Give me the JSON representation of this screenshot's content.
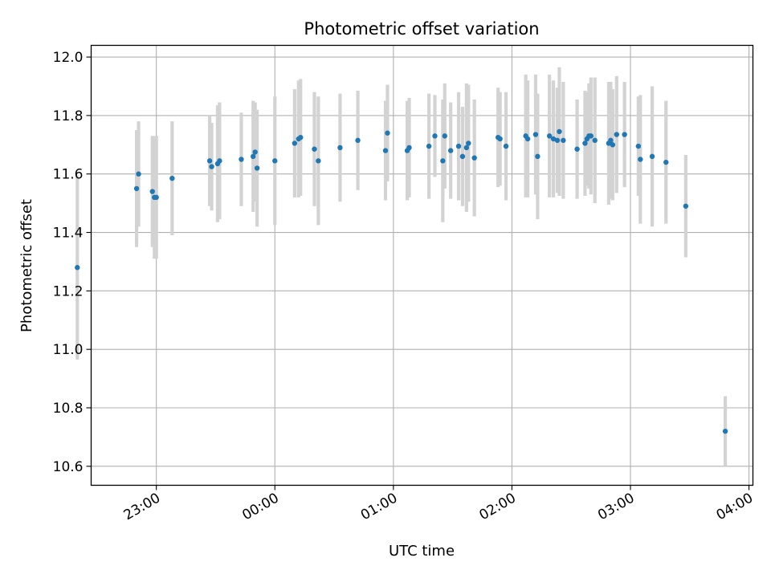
{
  "chart_data": {
    "type": "scatter",
    "title": "Photometric offset variation",
    "xlabel": "UTC time",
    "ylabel": "Photometric offset",
    "xlim": [
      "22:27",
      "04:02"
    ],
    "ylim": [
      10.535,
      12.04
    ],
    "x_ticks": [
      "23:00",
      "00:00",
      "01:00",
      "02:00",
      "03:00",
      "04:00"
    ],
    "y_ticks": [
      "10.6",
      "10.8",
      "11.0",
      "11.2",
      "11.4",
      "11.6",
      "11.8",
      "12.0"
    ],
    "grid": true,
    "colors": {
      "point": "#1f77b4",
      "errorbar": "#d3d3d3",
      "grid": "#b0b0b0"
    },
    "series": [
      {
        "x": [
          "22:20",
          "22:50",
          "22:51",
          "22:58",
          "22:59",
          "23:00",
          "23:08",
          "23:27",
          "23:28",
          "23:31",
          "23:32",
          "23:43",
          "23:49",
          "23:50",
          "23:51",
          "24:00",
          "24:10",
          "24:12",
          "24:13",
          "24:20",
          "24:22",
          "24:33",
          "24:42",
          "24:56",
          "24:57",
          "25:07",
          "25:08",
          "25:18",
          "25:21",
          "25:25",
          "25:26",
          "25:29",
          "25:33",
          "25:35",
          "25:37",
          "25:38",
          "25:41",
          "25:53",
          "25:54",
          "25:57",
          "26:07",
          "26:08",
          "26:12",
          "26:13",
          "26:19",
          "26:21",
          "26:23",
          "26:24",
          "26:26",
          "26:33",
          "26:37",
          "26:38",
          "26:39",
          "26:40",
          "26:42",
          "26:49",
          "26:50",
          "26:51",
          "26:53",
          "26:57",
          "27:04",
          "27:05",
          "27:11",
          "27:18",
          "27:28",
          "27:48"
        ],
        "y": [
          11.28,
          11.55,
          11.6,
          11.54,
          11.52,
          11.52,
          11.585,
          11.645,
          11.625,
          11.635,
          11.645,
          11.65,
          11.66,
          11.675,
          11.62,
          11.645,
          11.705,
          11.72,
          11.725,
          11.685,
          11.645,
          11.69,
          11.715,
          11.68,
          11.74,
          11.68,
          11.69,
          11.695,
          11.73,
          11.645,
          11.73,
          11.68,
          11.695,
          11.66,
          11.69,
          11.705,
          11.655,
          11.725,
          11.72,
          11.695,
          11.73,
          11.72,
          11.735,
          11.66,
          11.73,
          11.72,
          11.715,
          11.745,
          11.715,
          11.685,
          11.705,
          11.72,
          11.73,
          11.73,
          11.715,
          11.705,
          11.715,
          11.7,
          11.735,
          11.735,
          11.695,
          11.65,
          11.66,
          11.64,
          11.49,
          10.72
        ],
        "err": [
          0.315,
          0.2,
          0.18,
          0.19,
          0.21,
          0.21,
          0.195,
          0.155,
          0.15,
          0.2,
          0.2,
          0.16,
          0.19,
          0.17,
          0.2,
          0.22,
          0.185,
          0.2,
          0.2,
          0.195,
          0.22,
          0.185,
          0.17,
          0.17,
          0.165,
          0.17,
          0.17,
          0.18,
          0.14,
          0.21,
          0.18,
          0.165,
          0.185,
          0.17,
          0.22,
          0.2,
          0.2,
          0.17,
          0.16,
          0.185,
          0.21,
          0.2,
          0.205,
          0.215,
          0.21,
          0.2,
          0.18,
          0.22,
          0.2,
          0.17,
          0.18,
          0.16,
          0.18,
          0.2,
          0.215,
          0.21,
          0.2,
          0.19,
          0.2,
          0.18,
          0.17,
          0.22,
          0.24,
          0.21,
          0.175,
          0.12
        ]
      }
    ]
  }
}
